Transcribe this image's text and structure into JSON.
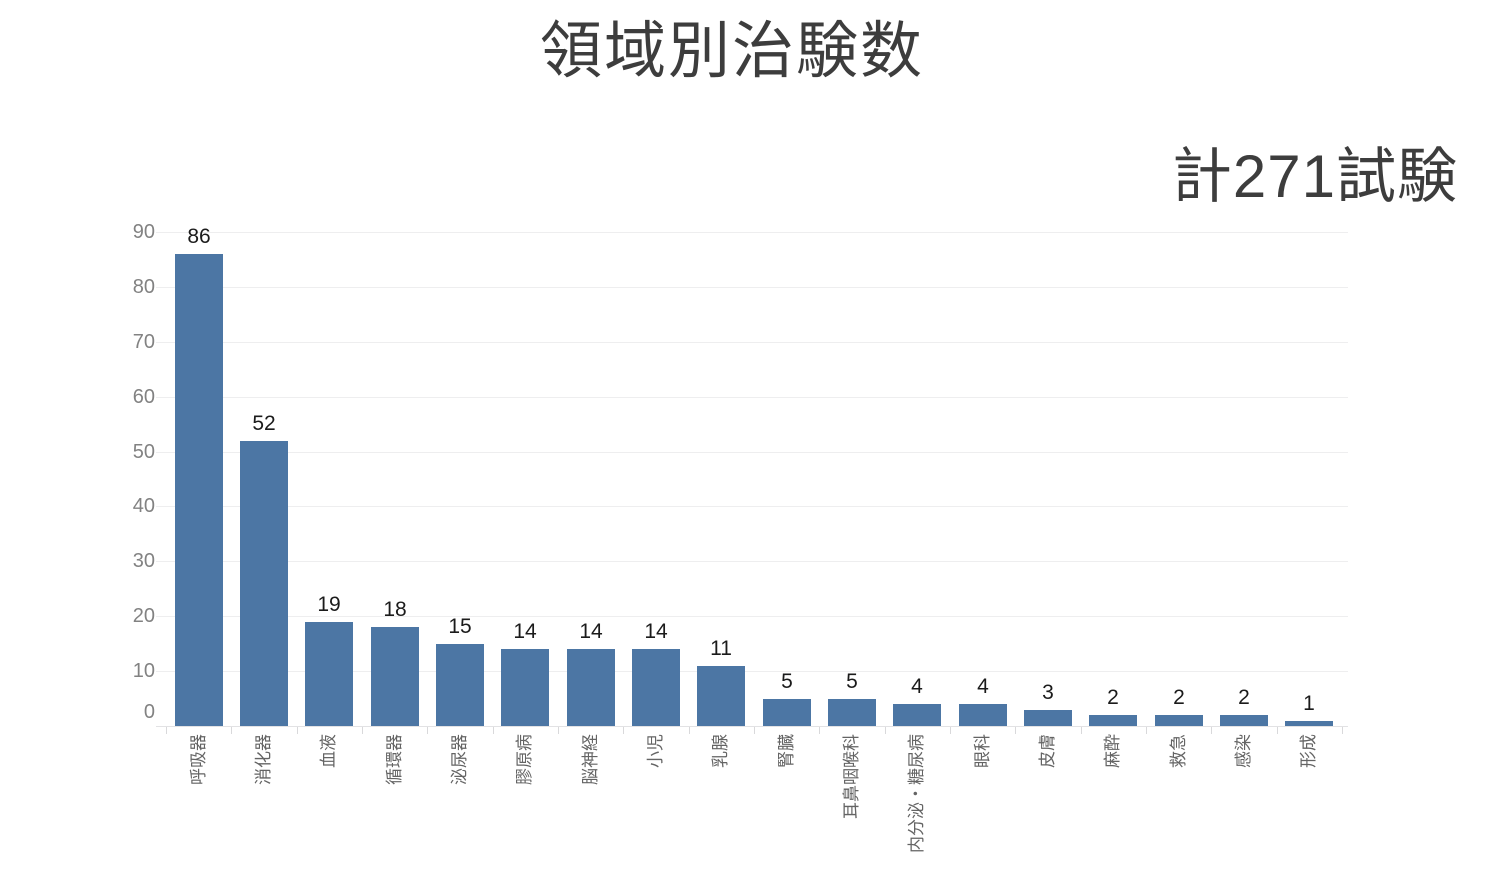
{
  "chart_data": {
    "type": "bar",
    "title": "領域別治験数",
    "annotation": "計271試験",
    "total": 271,
    "categories": [
      "呼吸器",
      "消化器",
      "血液",
      "循環器",
      "泌尿器",
      "膠原病",
      "脳神経",
      "小児",
      "乳腺",
      "腎臓",
      "耳鼻咽喉科",
      "内分泌・糖尿病",
      "眼科",
      "皮膚",
      "麻酔",
      "救急",
      "感染",
      "形成"
    ],
    "values": [
      86,
      52,
      19,
      18,
      15,
      14,
      14,
      14,
      11,
      5,
      5,
      4,
      4,
      3,
      2,
      2,
      2,
      1
    ],
    "xlabel": "",
    "ylabel": "",
    "ylim": [
      0,
      90
    ],
    "yticks": [
      0,
      10,
      20,
      30,
      40,
      50,
      60,
      70,
      80,
      90
    ],
    "grid": true,
    "legend": false,
    "value_labels": true,
    "colors": {
      "bar": "#4c76a4",
      "title_text": "#3d3d3d",
      "value_label_text": "#1b1b1b",
      "y_tick_text": "#828282",
      "category_text": "#646464",
      "gridline": "#eeeeef",
      "axis_line": "#e2e2e4",
      "background": "#ffffff"
    }
  }
}
